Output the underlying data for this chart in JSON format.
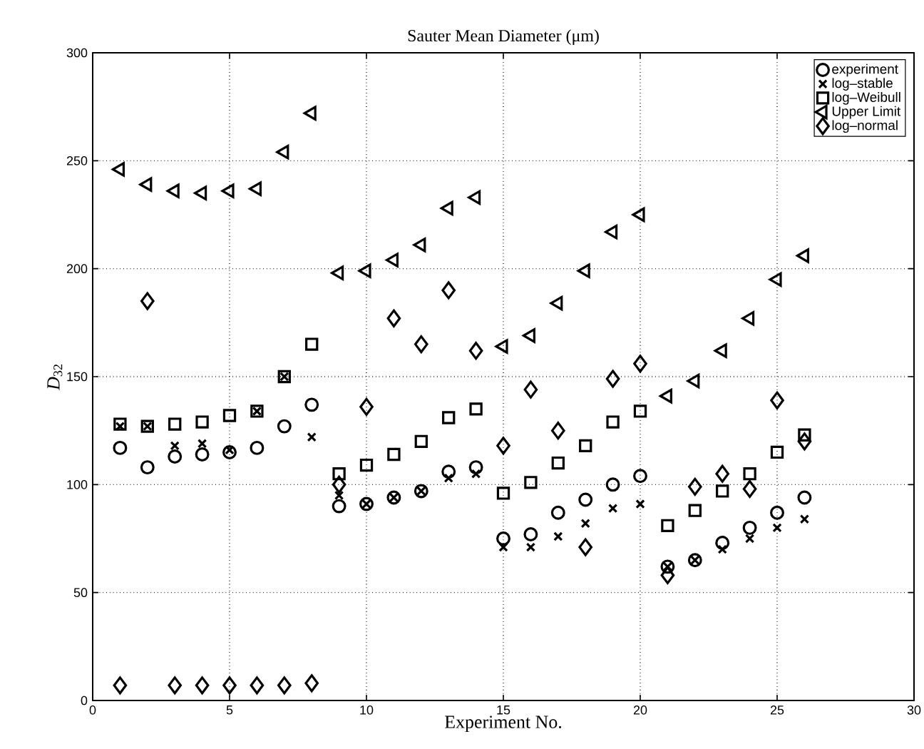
{
  "chart_data": {
    "type": "scatter",
    "title": "Sauter Mean Diameter (μm)",
    "xlabel": "Experiment No.",
    "ylabel": "*D*$_{32}$",
    "x": [
      1,
      2,
      3,
      4,
      5,
      6,
      7,
      8,
      9,
      10,
      11,
      12,
      13,
      14,
      15,
      16,
      17,
      18,
      19,
      20,
      21,
      22,
      23,
      24,
      25,
      26
    ],
    "series": [
      {
        "name": "experiment",
        "color": "#000000",
        "marker": "circle",
        "values": [
          117,
          108,
          113,
          114,
          115,
          117,
          127,
          137,
          90,
          91,
          94,
          97,
          106,
          108,
          75,
          77,
          87,
          93,
          100,
          104,
          62,
          65,
          73,
          80,
          87,
          94
        ]
      },
      {
        "name": "log–stable",
        "color": "#000000",
        "marker": "cross",
        "values": [
          127,
          127,
          118,
          119,
          116,
          134,
          150,
          122,
          95,
          91,
          94,
          97,
          103,
          105,
          71,
          71,
          76,
          82,
          89,
          91,
          62,
          65,
          70,
          75,
          80,
          84
        ]
      },
      {
        "name": "log–Weibull",
        "color": "#000000",
        "marker": "square",
        "values": [
          128,
          127,
          128,
          129,
          132,
          134,
          150,
          165,
          105,
          109,
          114,
          120,
          131,
          135,
          96,
          101,
          110,
          118,
          129,
          134,
          81,
          88,
          97,
          105,
          115,
          123
        ]
      },
      {
        "name": "Upper Limit",
        "color": "#000000",
        "marker": "triangle",
        "values": [
          246,
          239,
          236,
          235,
          236,
          237,
          254,
          272,
          198,
          199,
          204,
          211,
          228,
          233,
          164,
          169,
          184,
          199,
          217,
          225,
          141,
          148,
          162,
          177,
          195,
          206
        ]
      },
      {
        "name": "log–normal",
        "color": "#000000",
        "marker": "diamond",
        "values": [
          7,
          185,
          7,
          7,
          7,
          7,
          7,
          8,
          100,
          136,
          177,
          165,
          190,
          162,
          118,
          144,
          125,
          71,
          149,
          156,
          58,
          99,
          105,
          98,
          139,
          120
        ]
      }
    ],
    "xlim": [
      0,
      30
    ],
    "xticks": [
      0,
      5,
      10,
      15,
      20,
      25,
      30
    ],
    "ylim": [
      0,
      300
    ],
    "yticks": [
      0,
      50,
      100,
      150,
      200,
      250,
      300
    ],
    "grid": true,
    "legend": "top right"
  }
}
